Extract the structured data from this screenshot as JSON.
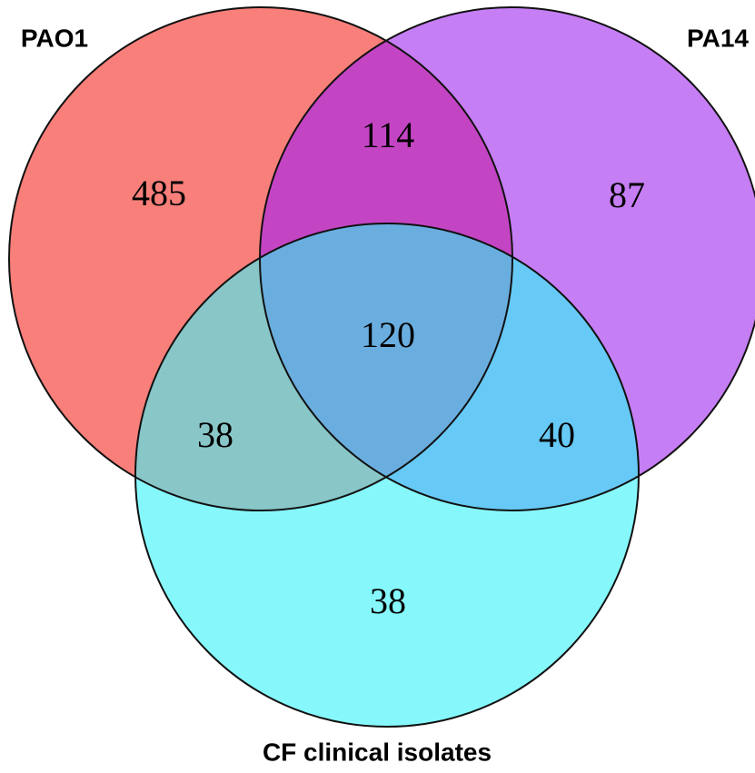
{
  "sets": [
    {
      "label": "PAO1"
    },
    {
      "label": "PA14"
    },
    {
      "label": "CF clinical isolates"
    }
  ],
  "regions": [
    {
      "label": "485"
    },
    {
      "label": "114"
    },
    {
      "label": "87"
    },
    {
      "label": "120"
    },
    {
      "label": "38"
    },
    {
      "label": "40"
    },
    {
      "label": "38"
    }
  ]
}
